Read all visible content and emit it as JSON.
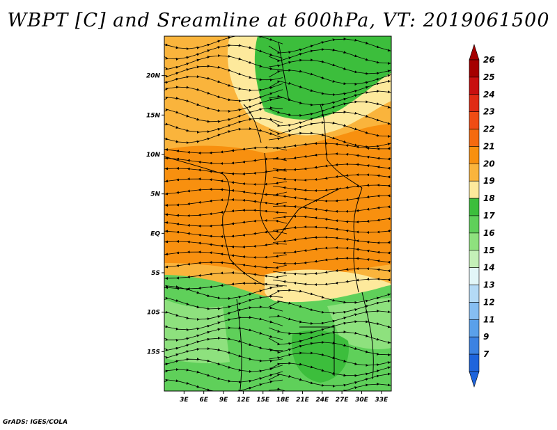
{
  "title": "WBPT [C] and Sreamline at 600hPa, VT: 2019061500",
  "credit": "GrADS: IGES/COLA",
  "map": {
    "lat_labels": [
      "20N",
      "15N",
      "10N",
      "5N",
      "EQ",
      "5S",
      "10S",
      "15S"
    ],
    "lat_values": [
      20,
      15,
      10,
      5,
      0,
      -5,
      -10,
      -15
    ],
    "lon_labels": [
      "3E",
      "6E",
      "9E",
      "12E",
      "15E",
      "18E",
      "21E",
      "24E",
      "27E",
      "30E",
      "33E"
    ],
    "lon_values": [
      3,
      6,
      9,
      12,
      15,
      18,
      21,
      24,
      27,
      30,
      33
    ],
    "lat_range": [
      -20,
      25
    ],
    "lon_range": [
      0,
      34.5
    ]
  },
  "colorbar": {
    "labels": [
      "26",
      "25",
      "24",
      "23",
      "22",
      "21",
      "20",
      "19",
      "18",
      "17",
      "16",
      "15",
      "14",
      "13",
      "12",
      "11",
      "9",
      "7"
    ],
    "colors": [
      "#a50000",
      "#c81010",
      "#e02b14",
      "#f04c14",
      "#f56a0f",
      "#f8900f",
      "#fab43c",
      "#fde99c",
      "#3cbe3c",
      "#5fd05a",
      "#8ee17e",
      "#c4f0b8",
      "#e2f6f8",
      "#b4daf6",
      "#86bef2",
      "#5aa0ea",
      "#3c82e2",
      "#1e64dc"
    ]
  }
}
